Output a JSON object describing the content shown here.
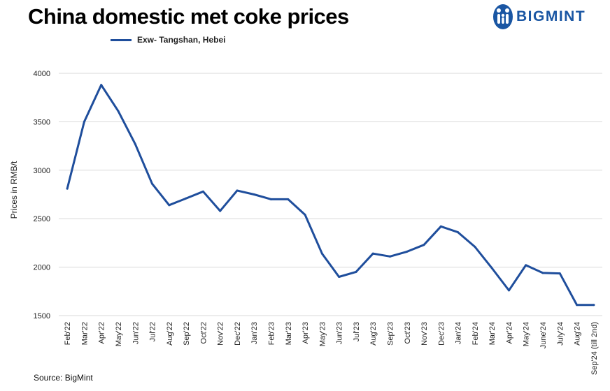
{
  "brand": {
    "name": "BIGMINT",
    "color": "#1a56a3"
  },
  "source": "Source: BigMint",
  "chart_data": {
    "type": "line",
    "title": "China domestic met coke prices",
    "xlabel": "",
    "ylabel": "Prices in RMB/t",
    "ylim": [
      1500,
      4000
    ],
    "yticks": [
      1500,
      2000,
      2500,
      3000,
      3500,
      4000
    ],
    "grid": true,
    "legend_position": "top-left",
    "categories": [
      "Feb'22",
      "Mar'22",
      "Apr'22",
      "May'22",
      "Jun'22",
      "Jul'22",
      "Aug'22",
      "Sep'22",
      "Oct'22",
      "Nov'22",
      "Dec'22",
      "Jan'23",
      "Feb'23",
      "Mar'23",
      "Apr'23",
      "May'23",
      "Jun'23",
      "Jul'23",
      "Aug'23",
      "Sep'23",
      "Oct'23",
      "Nov'23",
      "Dec'23",
      "Jan'24",
      "Feb'24",
      "Mar'24",
      "Apr'24",
      "May'24",
      "June'24",
      "July'24",
      "Aug'24",
      "Sep'24 (till 2nd)"
    ],
    "series": [
      {
        "name": "Exw- Tangshan, Hebei",
        "color": "#1f4e9c",
        "values": [
          2810,
          3500,
          3880,
          3610,
          3270,
          2860,
          2640,
          2710,
          2780,
          2580,
          2790,
          2750,
          2700,
          2700,
          2540,
          2140,
          1900,
          1950,
          2140,
          2110,
          2160,
          2230,
          2420,
          2360,
          2210,
          1990,
          1760,
          2020,
          1940,
          1935,
          1610,
          1610
        ]
      }
    ]
  }
}
